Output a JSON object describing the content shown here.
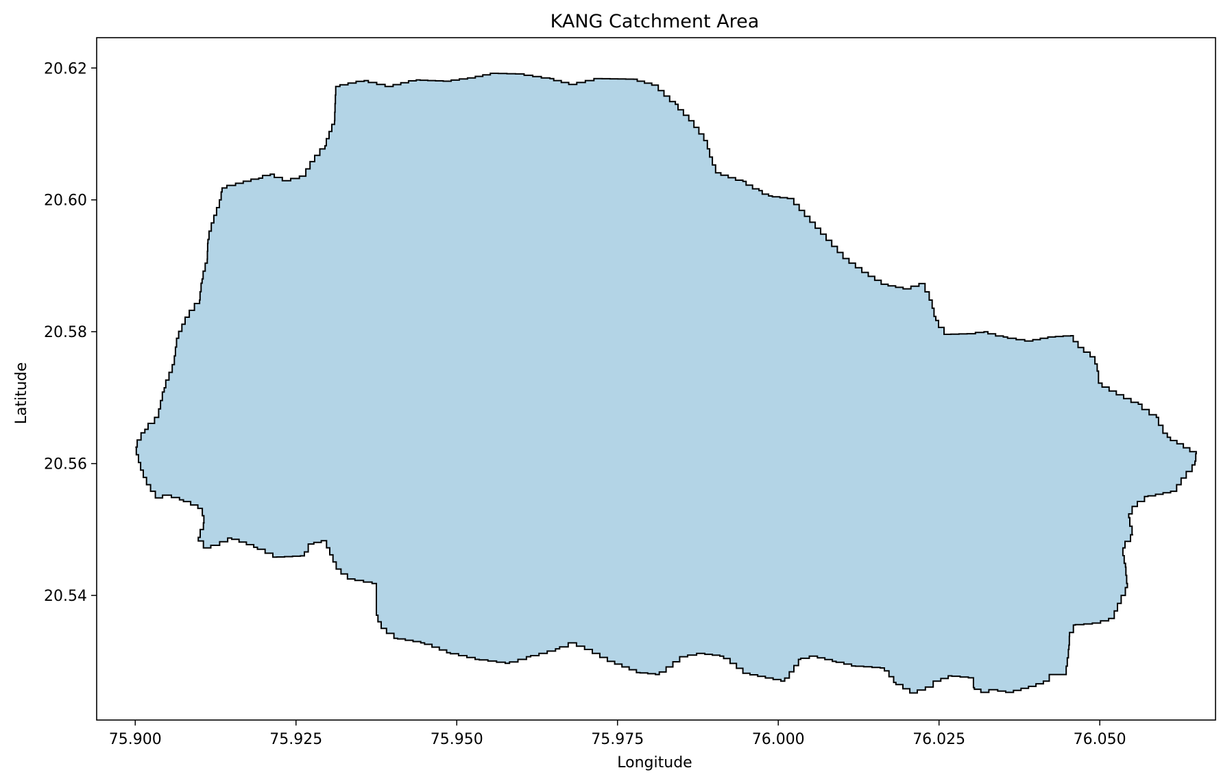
{
  "chart_data": {
    "type": "map",
    "title": "KANG Catchment Area",
    "xlabel": "Longitude",
    "ylabel": "Latitude",
    "xlim": [
      75.894,
      76.068
    ],
    "ylim": [
      20.5211,
      20.6246
    ],
    "x_ticks": [
      75.9,
      75.925,
      75.95,
      75.975,
      76.0,
      76.025,
      76.05
    ],
    "x_tick_labels": [
      "75.900",
      "75.925",
      "75.950",
      "75.975",
      "76.000",
      "76.025",
      "76.050"
    ],
    "y_ticks": [
      20.54,
      20.56,
      20.58,
      20.6,
      20.62
    ],
    "y_tick_labels": [
      "20.54",
      "20.56",
      "20.58",
      "20.60",
      "20.62"
    ],
    "grid": false,
    "fill_color": "#b3d4e6",
    "edge_color": "#000000",
    "boundary": [
      [
        75.9312,
        20.6172
      ],
      [
        75.9356,
        20.6181
      ],
      [
        75.9395,
        20.6172
      ],
      [
        75.9437,
        20.6182
      ],
      [
        75.9485,
        20.618
      ],
      [
        75.9523,
        20.6185
      ],
      [
        75.9558,
        20.6192
      ],
      [
        75.9598,
        20.6191
      ],
      [
        75.9645,
        20.6184
      ],
      [
        75.968,
        20.6175
      ],
      [
        75.972,
        20.6184
      ],
      [
        75.9775,
        20.6183
      ],
      [
        75.9809,
        20.6174
      ],
      [
        75.984,
        20.6145
      ],
      [
        75.9865,
        20.612
      ],
      [
        75.9888,
        20.609
      ],
      [
        75.9895,
        20.6065
      ],
      [
        75.9905,
        20.6041
      ],
      [
        75.9945,
        20.6028
      ],
      [
        75.997,
        20.6014
      ],
      [
        75.9985,
        20.6006
      ],
      [
        76.002,
        20.6002
      ],
      [
        76.007,
        20.5948
      ],
      [
        76.0105,
        20.5911
      ],
      [
        76.0135,
        20.589
      ],
      [
        76.0165,
        20.5872
      ],
      [
        76.02,
        20.5865
      ],
      [
        76.0225,
        20.5873
      ],
      [
        76.0238,
        20.5848
      ],
      [
        76.0245,
        20.5817
      ],
      [
        76.0262,
        20.5796
      ],
      [
        76.03,
        20.5797
      ],
      [
        76.032,
        20.58
      ],
      [
        76.035,
        20.5792
      ],
      [
        76.039,
        20.5786
      ],
      [
        76.0425,
        20.5792
      ],
      [
        76.0455,
        20.5794
      ],
      [
        76.047,
        20.5776
      ],
      [
        76.049,
        20.5762
      ],
      [
        76.0495,
        20.5751
      ],
      [
        76.0498,
        20.5735
      ],
      [
        76.0498,
        20.5722
      ],
      [
        76.052,
        20.571
      ],
      [
        76.056,
        20.569
      ],
      [
        76.0588,
        20.567
      ],
      [
        76.0605,
        20.564
      ],
      [
        76.0625,
        20.563
      ],
      [
        76.065,
        20.5615
      ],
      [
        76.0648,
        20.5598
      ],
      [
        76.063,
        20.5578
      ],
      [
        76.0616,
        20.5558
      ],
      [
        76.0575,
        20.555
      ],
      [
        76.0553,
        20.5535
      ],
      [
        76.0545,
        20.5518
      ],
      [
        76.0552,
        20.5492
      ],
      [
        76.0535,
        20.5472
      ],
      [
        76.054,
        20.5443
      ],
      [
        76.0543,
        20.5412
      ],
      [
        76.053,
        20.5388
      ],
      [
        76.052,
        20.5365
      ],
      [
        76.0495,
        20.5358
      ],
      [
        76.0462,
        20.5355
      ],
      [
        76.0453,
        20.5338
      ],
      [
        76.0452,
        20.5318
      ],
      [
        76.0447,
        20.528
      ],
      [
        76.0425,
        20.528
      ],
      [
        76.0418,
        20.527
      ],
      [
        76.0395,
        20.5262
      ],
      [
        76.036,
        20.5253
      ],
      [
        76.0335,
        20.5257
      ],
      [
        76.032,
        20.5253
      ],
      [
        76.0305,
        20.526
      ],
      [
        76.0302,
        20.5275
      ],
      [
        76.027,
        20.5278
      ],
      [
        76.0247,
        20.527
      ],
      [
        76.0235,
        20.5261
      ],
      [
        76.021,
        20.5252
      ],
      [
        76.0183,
        20.5268
      ],
      [
        76.0165,
        20.529
      ],
      [
        76.012,
        20.5293
      ],
      [
        76.009,
        20.53
      ],
      [
        76.0055,
        20.5308
      ],
      [
        76.0035,
        20.5303
      ],
      [
        76.001,
        20.527
      ],
      [
        75.995,
        20.5282
      ],
      [
        75.9915,
        20.5308
      ],
      [
        75.988,
        20.5312
      ],
      [
        75.9852,
        20.5307
      ],
      [
        75.9815,
        20.528
      ],
      [
        75.9785,
        20.5283
      ],
      [
        75.974,
        20.53
      ],
      [
        75.9705,
        20.5318
      ],
      [
        75.968,
        20.5328
      ],
      [
        75.966,
        20.5319
      ],
      [
        75.9615,
        20.5307
      ],
      [
        75.9582,
        20.5297
      ],
      [
        75.9535,
        20.5303
      ],
      [
        75.949,
        20.5313
      ],
      [
        75.945,
        20.5328
      ],
      [
        75.9408,
        20.5335
      ],
      [
        75.9385,
        20.535
      ],
      [
        75.9375,
        20.537
      ],
      [
        75.9375,
        20.5418
      ],
      [
        75.9335,
        20.5425
      ],
      [
        75.9315,
        20.544
      ],
      [
        75.9295,
        20.5483
      ],
      [
        75.9272,
        20.5478
      ],
      [
        75.9263,
        20.546
      ],
      [
        75.922,
        20.5458
      ],
      [
        75.919,
        20.5473
      ],
      [
        75.915,
        20.5487
      ],
      [
        75.9125,
        20.5476
      ],
      [
        75.911,
        20.5472
      ],
      [
        75.9098,
        20.5488
      ],
      [
        75.9104,
        20.55
      ],
      [
        75.9108,
        20.551
      ],
      [
        75.9103,
        20.5532
      ],
      [
        75.9075,
        20.5545
      ],
      [
        75.905,
        20.5552
      ],
      [
        75.9035,
        20.5548
      ],
      [
        75.902,
        20.5568
      ],
      [
        75.901,
        20.559
      ],
      [
        75.9,
        20.5625
      ],
      [
        75.9015,
        20.5652
      ],
      [
        75.9035,
        20.567
      ],
      [
        75.9045,
        20.5715
      ],
      [
        75.906,
        20.575
      ],
      [
        75.9065,
        20.579
      ],
      [
        75.908,
        20.5822
      ],
      [
        75.91,
        20.5848
      ],
      [
        75.9104,
        20.588
      ],
      [
        75.9112,
        20.591
      ],
      [
        75.9113,
        20.594
      ],
      [
        75.912,
        20.5965
      ],
      [
        75.9133,
        20.6
      ],
      [
        75.9135,
        20.6018
      ],
      [
        75.915,
        20.6022
      ],
      [
        75.9192,
        20.6033
      ],
      [
        75.921,
        20.6039
      ],
      [
        75.9235,
        20.6029
      ],
      [
        75.9262,
        20.6036
      ],
      [
        75.9275,
        20.6058
      ],
      [
        75.9295,
        20.6082
      ],
      [
        75.931,
        20.612
      ],
      [
        75.9312,
        20.6172
      ]
    ]
  }
}
